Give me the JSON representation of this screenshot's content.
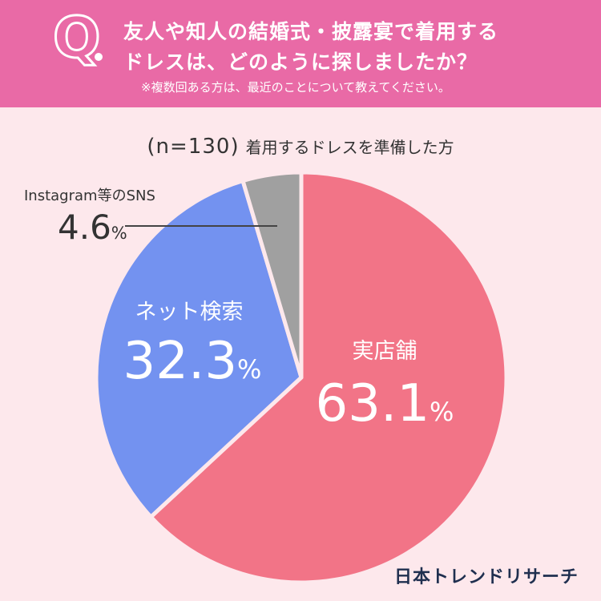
{
  "question": {
    "marker": "Q",
    "line1": "友人や知人の結婚式・披露宴で着用する",
    "line2": "ドレスは、どのように探しましたか？",
    "note": "※複数回ある方は、最近のことについて教えてください。"
  },
  "sample": {
    "n_label": "(n=130)",
    "description": "着用するドレスを準備した方"
  },
  "brand": "日本トレンドリサーチ",
  "colors": {
    "header": "#e96aa6",
    "background": "#fde8ec",
    "store": "#f27487",
    "online": "#7392f0",
    "sns": "#a0a0a0",
    "separator": "#fde8ec"
  },
  "chart_data": {
    "type": "pie",
    "start": "12 o'clock, clockwise",
    "slices": [
      {
        "label": "実店舗",
        "value": 63.1,
        "value_text": "63.1",
        "unit": "%",
        "color": "#f27487"
      },
      {
        "label": "ネット検索",
        "value": 32.3,
        "value_text": "32.3",
        "unit": "%",
        "color": "#7392f0"
      },
      {
        "label": "Instagram等のSNS",
        "value": 4.6,
        "value_text": "4.6",
        "unit": "%",
        "color": "#a0a0a0"
      }
    ]
  }
}
